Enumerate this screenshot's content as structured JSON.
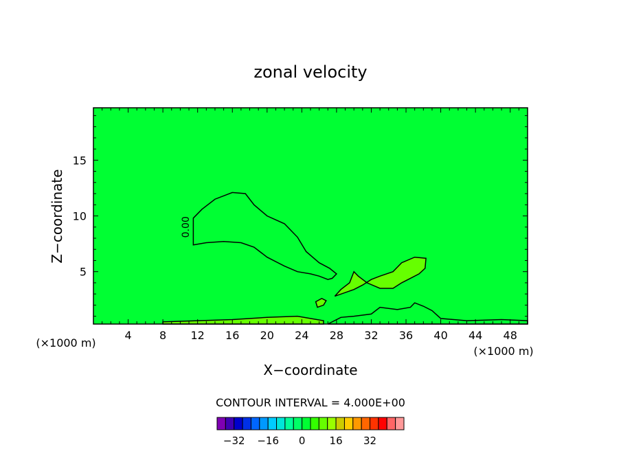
{
  "chart_data": {
    "type": "heatmap",
    "title": "zonal velocity",
    "xlabel": "X−coordinate",
    "ylabel": "Z−coordinate",
    "x_units_left": "(×1000 m)",
    "x_units_right": "(×1000 m)",
    "xlim": [
      0,
      50
    ],
    "ylim": [
      0.3,
      19.7
    ],
    "x_ticks": [
      4,
      8,
      12,
      16,
      20,
      24,
      28,
      32,
      36,
      40,
      44,
      48
    ],
    "y_ticks": [
      5,
      10,
      15
    ],
    "contour_interval_label": "CONTOUR INTERVAL = 4.000E+00",
    "contour_label": "0.00",
    "background_level": 0,
    "colorbar": {
      "levels": [
        -36,
        -32,
        -28,
        -24,
        -20,
        -16,
        -12,
        -8,
        -4,
        0,
        4,
        8,
        12,
        16,
        20,
        24,
        28,
        32,
        36
      ],
      "tick_labels": [
        "−32",
        "−16",
        "0",
        "16",
        "32"
      ],
      "tick_values": [
        -32,
        -16,
        0,
        16,
        32
      ],
      "colors": [
        "#7f00b3",
        "#3f00b3",
        "#0000cc",
        "#0030e6",
        "#0066ff",
        "#0099ff",
        "#00ccff",
        "#00e6d9",
        "#00ff99",
        "#00ff66",
        "#00ff33",
        "#33ff00",
        "#66ff00",
        "#99ff00",
        "#cccc00",
        "#ffcc00",
        "#ff9900",
        "#ff6600",
        "#ff3300",
        "#ff0000",
        "#ff6666",
        "#ff9999"
      ]
    },
    "regions": [
      {
        "name": "negative-core",
        "level": -4,
        "color": "#00ff33",
        "outline": [
          [
            11.5,
            9.8
          ],
          [
            12.5,
            10.6
          ],
          [
            14,
            11.5
          ],
          [
            16,
            12.1
          ],
          [
            17.5,
            12.0
          ],
          [
            18.5,
            11.0
          ],
          [
            20,
            10.0
          ],
          [
            22,
            9.3
          ],
          [
            23.5,
            8.1
          ],
          [
            24.5,
            6.8
          ],
          [
            26,
            5.8
          ],
          [
            27.2,
            5.3
          ],
          [
            28,
            4.8
          ],
          [
            27.5,
            4.4
          ],
          [
            27,
            4.3
          ],
          [
            26,
            4.6
          ],
          [
            25,
            4.8
          ],
          [
            23.5,
            5.0
          ],
          [
            22,
            5.5
          ],
          [
            20,
            6.3
          ],
          [
            18.5,
            7.2
          ],
          [
            17,
            7.6
          ],
          [
            15,
            7.7
          ],
          [
            13,
            7.6
          ],
          [
            11.5,
            7.4
          ]
        ]
      },
      {
        "name": "positive-plume",
        "level": 4,
        "color": "#66ff00",
        "outline": [
          [
            27.8,
            2.8
          ],
          [
            30,
            3.4
          ],
          [
            31,
            3.8
          ],
          [
            32,
            4.3
          ],
          [
            33,
            4.6
          ],
          [
            34.5,
            5.0
          ],
          [
            35.5,
            5.8
          ],
          [
            37,
            6.3
          ],
          [
            38.3,
            6.2
          ],
          [
            38.2,
            5.3
          ],
          [
            37.5,
            4.8
          ],
          [
            36.5,
            4.4
          ],
          [
            35.5,
            4.0
          ],
          [
            34.5,
            3.5
          ],
          [
            33,
            3.5
          ],
          [
            31.5,
            4.0
          ],
          [
            30.5,
            4.6
          ],
          [
            30,
            5.0
          ],
          [
            29.5,
            4.0
          ],
          [
            28.5,
            3.4
          ],
          [
            27.8,
            2.8
          ]
        ]
      },
      {
        "name": "small-positive-blob",
        "level": 4,
        "color": "#66ff00",
        "outline": [
          [
            25.8,
            1.8
          ],
          [
            26.5,
            2.0
          ],
          [
            26.8,
            2.4
          ],
          [
            26.3,
            2.6
          ],
          [
            25.6,
            2.3
          ]
        ]
      },
      {
        "name": "surface-positive-band",
        "level": 4,
        "color": "#66ff00",
        "outline": [
          [
            8,
            0.3
          ],
          [
            8,
            0.5
          ],
          [
            12,
            0.6
          ],
          [
            16,
            0.7
          ],
          [
            20,
            0.9
          ],
          [
            23.5,
            1.0
          ],
          [
            26.5,
            0.6
          ],
          [
            26.5,
            0.3
          ]
        ]
      },
      {
        "name": "surface-negative-zone",
        "level": -4,
        "color": "#00ff33",
        "outline": [
          [
            27,
            0.3
          ],
          [
            28.5,
            0.9
          ],
          [
            30,
            1.0
          ],
          [
            32,
            1.2
          ],
          [
            33,
            1.8
          ],
          [
            35,
            1.6
          ],
          [
            36.5,
            1.8
          ],
          [
            37,
            2.2
          ],
          [
            38,
            1.9
          ],
          [
            39,
            1.5
          ],
          [
            40,
            0.8
          ],
          [
            43,
            0.6
          ],
          [
            47,
            0.7
          ],
          [
            50,
            0.6
          ],
          [
            50,
            0.3
          ]
        ]
      }
    ]
  }
}
